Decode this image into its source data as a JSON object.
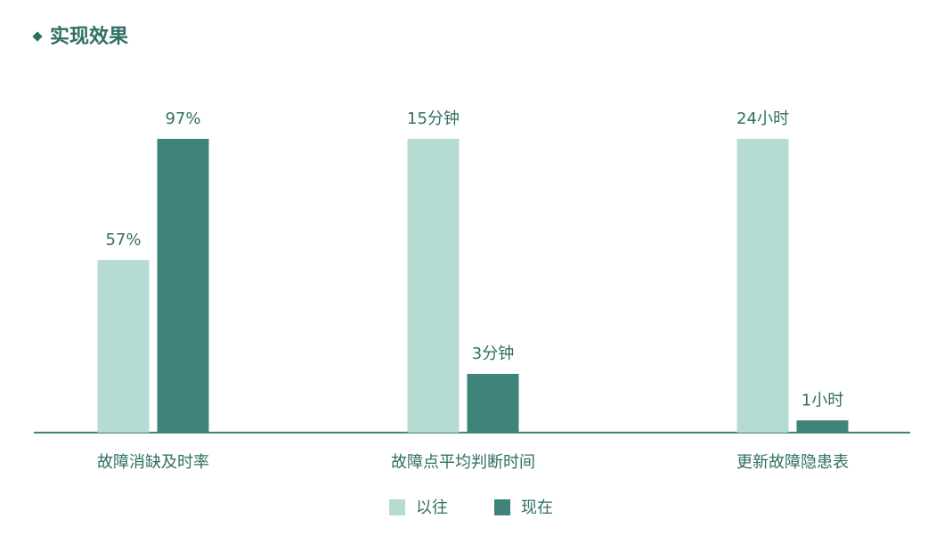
{
  "chart_data": {
    "type": "bar",
    "title": "实现效果",
    "categories": [
      "故障消缺及时率",
      "故障点平均判断时间",
      "更新故障隐患表"
    ],
    "series": [
      {
        "name": "以往",
        "color": "#b6dbd2",
        "values": [
          57,
          15,
          24
        ],
        "value_labels": [
          "57%",
          "15分钟",
          "24小时"
        ]
      },
      {
        "name": "现在",
        "color": "#3e847a",
        "values": [
          97,
          3,
          1
        ],
        "value_labels": [
          "97%",
          "3分钟",
          "1小时"
        ]
      }
    ]
  }
}
